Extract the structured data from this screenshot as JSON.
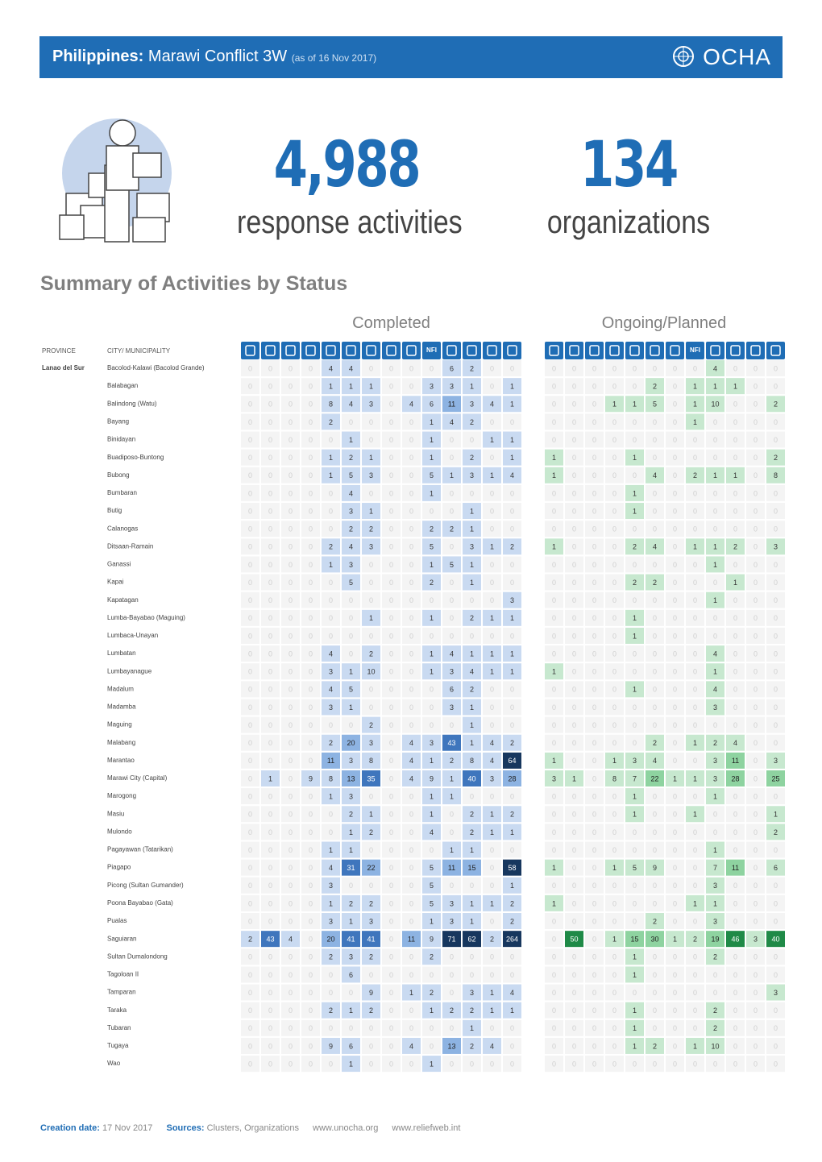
{
  "header": {
    "title_bold": "Philippines:",
    "title": "Marawi Conflict 3W",
    "date": "(as of 16 Nov 2017)",
    "logo": "OCHA"
  },
  "stats": [
    {
      "value": "4,988",
      "label": "response activities"
    },
    {
      "value": "134",
      "label": "organizations"
    }
  ],
  "section_title": "Summary of Activities by Status",
  "groups": {
    "completed": "Completed",
    "ongoing": "Ongoing/Planned"
  },
  "table": {
    "province_header": "PROVINCE",
    "city_header": "CITY/ MUNICIPALITY",
    "province": "Lanao del Sur",
    "nfi_label": "NFI",
    "rows": [
      {
        "city": "Bacolod-Kalawi (Bacolod Grande)",
        "completed": [
          0,
          0,
          0,
          0,
          4,
          4,
          0,
          0,
          0,
          0,
          6,
          2,
          0,
          0
        ],
        "ongoing": [
          0,
          0,
          0,
          0,
          0,
          0,
          0,
          0,
          4,
          0,
          0,
          0
        ]
      },
      {
        "city": "Balabagan",
        "completed": [
          0,
          0,
          0,
          0,
          1,
          1,
          1,
          0,
          0,
          3,
          3,
          1,
          0,
          1
        ],
        "ongoing": [
          0,
          0,
          0,
          0,
          0,
          2,
          0,
          1,
          1,
          1,
          0,
          0
        ]
      },
      {
        "city": "Balindong (Watu)",
        "completed": [
          0,
          0,
          0,
          0,
          8,
          4,
          3,
          0,
          4,
          6,
          11,
          3,
          4,
          1
        ],
        "ongoing": [
          0,
          0,
          0,
          1,
          1,
          5,
          0,
          1,
          10,
          0,
          0,
          2
        ]
      },
      {
        "city": "Bayang",
        "completed": [
          0,
          0,
          0,
          0,
          2,
          0,
          0,
          0,
          0,
          1,
          4,
          2,
          0,
          0
        ],
        "ongoing": [
          0,
          0,
          0,
          0,
          0,
          0,
          0,
          1,
          0,
          0,
          0,
          0
        ]
      },
      {
        "city": "Binidayan",
        "completed": [
          0,
          0,
          0,
          0,
          0,
          1,
          0,
          0,
          0,
          1,
          0,
          0,
          1,
          1
        ],
        "ongoing": [
          0,
          0,
          0,
          0,
          0,
          0,
          0,
          0,
          0,
          0,
          0,
          0
        ]
      },
      {
        "city": "Buadiposo-Buntong",
        "completed": [
          0,
          0,
          0,
          0,
          1,
          2,
          1,
          0,
          0,
          1,
          0,
          2,
          0,
          1
        ],
        "ongoing": [
          1,
          0,
          0,
          0,
          1,
          0,
          0,
          0,
          0,
          0,
          0,
          2
        ]
      },
      {
        "city": "Bubong",
        "completed": [
          0,
          0,
          0,
          0,
          1,
          5,
          3,
          0,
          0,
          5,
          1,
          3,
          1,
          4
        ],
        "ongoing": [
          1,
          0,
          0,
          0,
          0,
          4,
          0,
          2,
          1,
          1,
          0,
          8
        ]
      },
      {
        "city": "Bumbaran",
        "completed": [
          0,
          0,
          0,
          0,
          0,
          4,
          0,
          0,
          0,
          1,
          0,
          0,
          0,
          0
        ],
        "ongoing": [
          0,
          0,
          0,
          0,
          1,
          0,
          0,
          0,
          0,
          0,
          0,
          0
        ]
      },
      {
        "city": "Butig",
        "completed": [
          0,
          0,
          0,
          0,
          0,
          3,
          1,
          0,
          0,
          0,
          0,
          1,
          0,
          0
        ],
        "ongoing": [
          0,
          0,
          0,
          0,
          1,
          0,
          0,
          0,
          0,
          0,
          0,
          0
        ]
      },
      {
        "city": "Calanogas",
        "completed": [
          0,
          0,
          0,
          0,
          0,
          2,
          2,
          0,
          0,
          2,
          2,
          1,
          0,
          0
        ],
        "ongoing": [
          0,
          0,
          0,
          0,
          0,
          0,
          0,
          0,
          0,
          0,
          0,
          0
        ]
      },
      {
        "city": "Ditsaan-Ramain",
        "completed": [
          0,
          0,
          0,
          0,
          2,
          4,
          3,
          0,
          0,
          5,
          0,
          3,
          1,
          2
        ],
        "ongoing": [
          1,
          0,
          0,
          0,
          2,
          4,
          0,
          1,
          1,
          2,
          0,
          3
        ]
      },
      {
        "city": "Ganassi",
        "completed": [
          0,
          0,
          0,
          0,
          1,
          3,
          0,
          0,
          0,
          1,
          5,
          1,
          0,
          0
        ],
        "ongoing": [
          0,
          0,
          0,
          0,
          0,
          0,
          0,
          0,
          1,
          0,
          0,
          0
        ]
      },
      {
        "city": "Kapai",
        "completed": [
          0,
          0,
          0,
          0,
          0,
          5,
          0,
          0,
          0,
          2,
          0,
          1,
          0,
          0
        ],
        "ongoing": [
          0,
          0,
          0,
          0,
          2,
          2,
          0,
          0,
          0,
          1,
          0,
          0
        ]
      },
      {
        "city": "Kapatagan",
        "completed": [
          0,
          0,
          0,
          0,
          0,
          0,
          0,
          0,
          0,
          0,
          0,
          0,
          0,
          3
        ],
        "ongoing": [
          0,
          0,
          0,
          0,
          0,
          0,
          0,
          0,
          1,
          0,
          0,
          0
        ]
      },
      {
        "city": "Lumba-Bayabao (Maguing)",
        "completed": [
          0,
          0,
          0,
          0,
          0,
          0,
          1,
          0,
          0,
          1,
          0,
          2,
          1,
          1
        ],
        "ongoing": [
          0,
          0,
          0,
          0,
          1,
          0,
          0,
          0,
          0,
          0,
          0,
          0
        ]
      },
      {
        "city": "Lumbaca-Unayan",
        "completed": [
          0,
          0,
          0,
          0,
          0,
          0,
          0,
          0,
          0,
          0,
          0,
          0,
          0,
          0
        ],
        "ongoing": [
          0,
          0,
          0,
          0,
          1,
          0,
          0,
          0,
          0,
          0,
          0,
          0
        ]
      },
      {
        "city": "Lumbatan",
        "completed": [
          0,
          0,
          0,
          0,
          4,
          0,
          2,
          0,
          0,
          1,
          4,
          1,
          1,
          1
        ],
        "ongoing": [
          0,
          0,
          0,
          0,
          0,
          0,
          0,
          0,
          4,
          0,
          0,
          0
        ]
      },
      {
        "city": "Lumbayanague",
        "completed": [
          0,
          0,
          0,
          0,
          3,
          1,
          10,
          0,
          0,
          1,
          3,
          4,
          1,
          1
        ],
        "ongoing": [
          1,
          0,
          0,
          0,
          0,
          0,
          0,
          0,
          1,
          0,
          0,
          0
        ]
      },
      {
        "city": "Madalum",
        "completed": [
          0,
          0,
          0,
          0,
          4,
          5,
          0,
          0,
          0,
          0,
          6,
          2,
          0,
          0
        ],
        "ongoing": [
          0,
          0,
          0,
          0,
          1,
          0,
          0,
          0,
          4,
          0,
          0,
          0
        ]
      },
      {
        "city": "Madamba",
        "completed": [
          0,
          0,
          0,
          0,
          3,
          1,
          0,
          0,
          0,
          0,
          3,
          1,
          0,
          0
        ],
        "ongoing": [
          0,
          0,
          0,
          0,
          0,
          0,
          0,
          0,
          3,
          0,
          0,
          0
        ]
      },
      {
        "city": "Maguing",
        "completed": [
          0,
          0,
          0,
          0,
          0,
          0,
          2,
          0,
          0,
          0,
          0,
          1,
          0,
          0
        ],
        "ongoing": [
          0,
          0,
          0,
          0,
          0,
          0,
          0,
          0,
          0,
          0,
          0,
          0
        ]
      },
      {
        "city": "Malabang",
        "completed": [
          0,
          0,
          0,
          0,
          2,
          20,
          3,
          0,
          4,
          3,
          43,
          1,
          4,
          2
        ],
        "ongoing": [
          0,
          0,
          0,
          0,
          0,
          2,
          0,
          1,
          2,
          4,
          0,
          0
        ]
      },
      {
        "city": "Marantao",
        "completed": [
          0,
          0,
          0,
          0,
          11,
          3,
          8,
          0,
          4,
          1,
          2,
          8,
          4,
          64
        ],
        "ongoing": [
          1,
          0,
          0,
          1,
          3,
          4,
          0,
          0,
          3,
          11,
          0,
          3
        ]
      },
      {
        "city": "Marawi City (Capital)",
        "completed": [
          0,
          1,
          0,
          9,
          8,
          13,
          35,
          0,
          4,
          9,
          1,
          40,
          3,
          28
        ],
        "ongoing": [
          3,
          1,
          0,
          8,
          7,
          22,
          1,
          1,
          3,
          28,
          0,
          25
        ]
      },
      {
        "city": "Marogong",
        "completed": [
          0,
          0,
          0,
          0,
          1,
          3,
          0,
          0,
          0,
          1,
          1,
          0,
          0,
          0
        ],
        "ongoing": [
          0,
          0,
          0,
          0,
          1,
          0,
          0,
          0,
          1,
          0,
          0,
          0
        ]
      },
      {
        "city": "Masiu",
        "completed": [
          0,
          0,
          0,
          0,
          0,
          2,
          1,
          0,
          0,
          1,
          0,
          2,
          1,
          2
        ],
        "ongoing": [
          0,
          0,
          0,
          0,
          1,
          0,
          0,
          1,
          0,
          0,
          0,
          1
        ]
      },
      {
        "city": "Mulondo",
        "completed": [
          0,
          0,
          0,
          0,
          0,
          1,
          2,
          0,
          0,
          4,
          0,
          2,
          1,
          1
        ],
        "ongoing": [
          0,
          0,
          0,
          0,
          0,
          0,
          0,
          0,
          0,
          0,
          0,
          2
        ]
      },
      {
        "city": "Pagayawan (Tatarikan)",
        "completed": [
          0,
          0,
          0,
          0,
          1,
          1,
          0,
          0,
          0,
          0,
          1,
          1,
          0,
          0
        ],
        "ongoing": [
          0,
          0,
          0,
          0,
          0,
          0,
          0,
          0,
          1,
          0,
          0,
          0
        ]
      },
      {
        "city": "Piagapo",
        "completed": [
          0,
          0,
          0,
          0,
          4,
          31,
          22,
          0,
          0,
          5,
          11,
          15,
          0,
          58
        ],
        "ongoing": [
          1,
          0,
          0,
          1,
          5,
          9,
          0,
          0,
          7,
          11,
          0,
          6
        ]
      },
      {
        "city": "Picong (Sultan Gumander)",
        "completed": [
          0,
          0,
          0,
          0,
          3,
          0,
          0,
          0,
          0,
          5,
          0,
          0,
          0,
          1
        ],
        "ongoing": [
          0,
          0,
          0,
          0,
          0,
          0,
          0,
          0,
          3,
          0,
          0,
          0
        ]
      },
      {
        "city": "Poona Bayabao (Gata)",
        "completed": [
          0,
          0,
          0,
          0,
          1,
          2,
          2,
          0,
          0,
          5,
          3,
          1,
          1,
          2
        ],
        "ongoing": [
          1,
          0,
          0,
          0,
          0,
          0,
          0,
          1,
          1,
          0,
          0,
          0
        ]
      },
      {
        "city": "Pualas",
        "completed": [
          0,
          0,
          0,
          0,
          3,
          1,
          3,
          0,
          0,
          1,
          3,
          1,
          0,
          2
        ],
        "ongoing": [
          0,
          0,
          0,
          0,
          0,
          2,
          0,
          0,
          3,
          0,
          0,
          0
        ]
      },
      {
        "city": "Saguiaran",
        "completed": [
          2,
          43,
          4,
          0,
          20,
          41,
          41,
          0,
          11,
          9,
          71,
          62,
          2,
          264
        ],
        "ongoing": [
          0,
          50,
          0,
          1,
          15,
          30,
          1,
          2,
          19,
          46,
          3,
          40
        ]
      },
      {
        "city": "Sultan Dumalondong",
        "completed": [
          0,
          0,
          0,
          0,
          2,
          3,
          2,
          0,
          0,
          2,
          0,
          0,
          0,
          0
        ],
        "ongoing": [
          0,
          0,
          0,
          0,
          1,
          0,
          0,
          0,
          2,
          0,
          0,
          0
        ]
      },
      {
        "city": "Tagoloan II",
        "completed": [
          0,
          0,
          0,
          0,
          0,
          6,
          0,
          0,
          0,
          0,
          0,
          0,
          0,
          0
        ],
        "ongoing": [
          0,
          0,
          0,
          0,
          1,
          0,
          0,
          0,
          0,
          0,
          0,
          0
        ]
      },
      {
        "city": "Tamparan",
        "completed": [
          0,
          0,
          0,
          0,
          0,
          0,
          9,
          0,
          1,
          2,
          0,
          3,
          1,
          4
        ],
        "ongoing": [
          0,
          0,
          0,
          0,
          0,
          0,
          0,
          0,
          0,
          0,
          0,
          3
        ]
      },
      {
        "city": "Taraka",
        "completed": [
          0,
          0,
          0,
          0,
          2,
          1,
          2,
          0,
          0,
          1,
          2,
          2,
          1,
          1
        ],
        "ongoing": [
          0,
          0,
          0,
          0,
          1,
          0,
          0,
          0,
          2,
          0,
          0,
          0
        ]
      },
      {
        "city": "Tubaran",
        "completed": [
          0,
          0,
          0,
          0,
          0,
          0,
          0,
          0,
          0,
          0,
          0,
          1,
          0,
          0
        ],
        "ongoing": [
          0,
          0,
          0,
          0,
          1,
          0,
          0,
          0,
          2,
          0,
          0,
          0
        ]
      },
      {
        "city": "Tugaya",
        "completed": [
          0,
          0,
          0,
          0,
          9,
          6,
          0,
          0,
          4,
          0,
          13,
          2,
          4,
          0
        ],
        "ongoing": [
          0,
          0,
          0,
          0,
          1,
          2,
          0,
          1,
          10,
          0,
          0,
          0
        ]
      },
      {
        "city": "Wao",
        "completed": [
          0,
          0,
          0,
          0,
          0,
          1,
          0,
          0,
          0,
          1,
          0,
          0,
          0,
          0
        ],
        "ongoing": [
          0,
          0,
          0,
          0,
          0,
          0,
          0,
          0,
          0,
          0,
          0,
          0
        ]
      }
    ]
  },
  "footer": {
    "date_label": "Creation date:",
    "date": "17 Nov 2017",
    "sources_label": "Sources:",
    "sources": "Clusters, Organizations",
    "link1": "www.unocha.org",
    "link2": "www.reliefweb.int"
  }
}
